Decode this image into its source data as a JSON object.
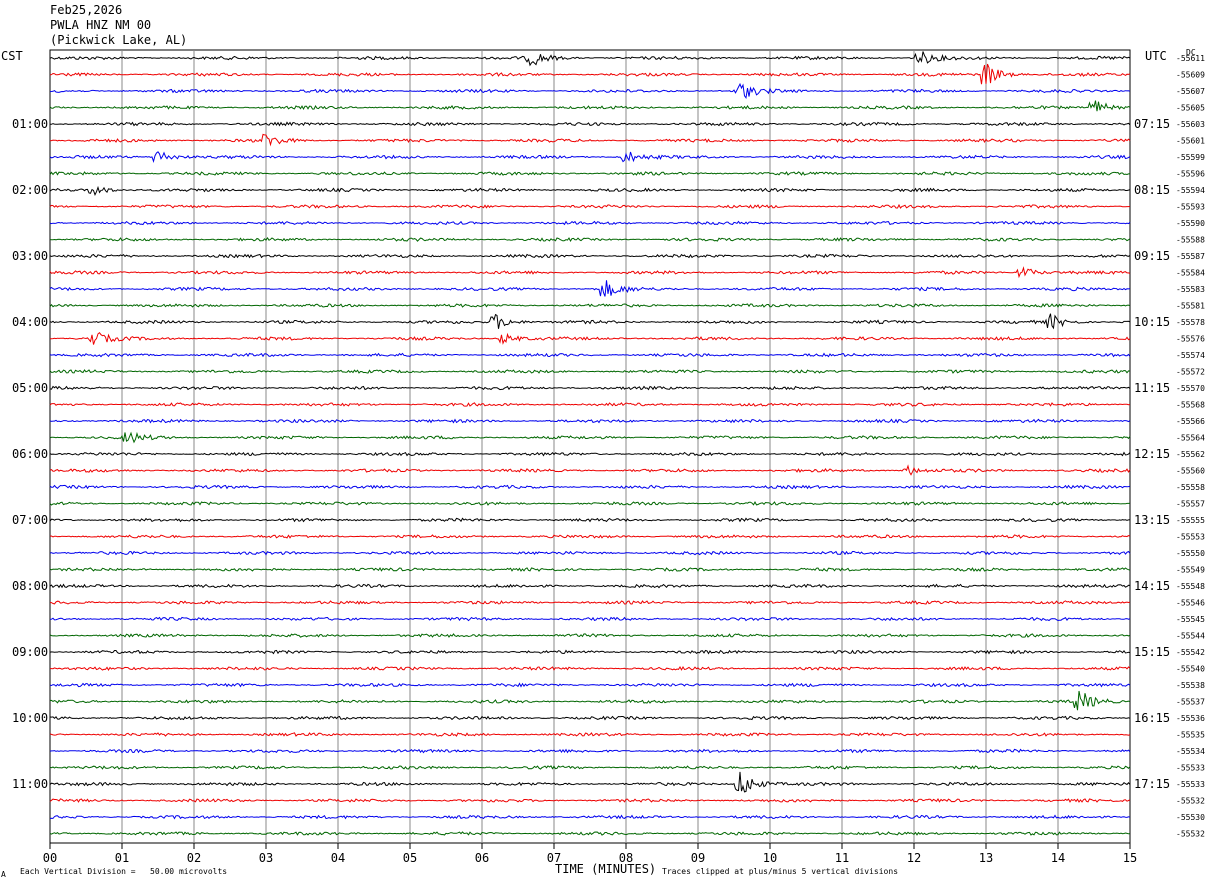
{
  "header": {
    "date": "Feb25,2026",
    "station": "PWLA HNZ NM 00",
    "location": "(Pickwick Lake, AL)"
  },
  "left_tz": "CST",
  "right_tz": "UTC",
  "dc_label": "DC",
  "footer": {
    "scale_note": "Each Vertical Division =   50.00 microvolts",
    "x_title": "TIME (MINUTES)",
    "clip_note": "Traces clipped at plus/minus 5 vertical divisions",
    "corner_mark": "A"
  },
  "chart_data": {
    "type": "line",
    "title": "PWLA HNZ NM 00 (Pickwick Lake, AL)",
    "xlabel": "TIME (MINUTES)",
    "xlim": [
      0,
      15
    ],
    "x_ticks": [
      "00",
      "01",
      "02",
      "03",
      "04",
      "05",
      "06",
      "07",
      "08",
      "09",
      "10",
      "11",
      "12",
      "13",
      "14",
      "15"
    ],
    "trace_colors": [
      "#000000",
      "#ee0000",
      "#0000ee",
      "#006600"
    ],
    "left_hour_labels": [
      "01:00",
      "02:00",
      "03:00",
      "04:00",
      "05:00",
      "06:00",
      "07:00",
      "08:00",
      "09:00",
      "10:00",
      "11:00"
    ],
    "right_hour_labels": [
      "07:15",
      "08:15",
      "09:15",
      "10:15",
      "11:15",
      "12:15",
      "13:15",
      "14:15",
      "15:15",
      "16:15",
      "17:15"
    ],
    "dc_offsets": [
      "-55611",
      "-55609",
      "-55607",
      "-55605",
      "-55603",
      "-55601",
      "-55599",
      "-55596",
      "-55594",
      "-55593",
      "-55590",
      "-55588",
      "-55587",
      "-55584",
      "-55583",
      "-55581",
      "-55578",
      "-55576",
      "-55574",
      "-55572",
      "-55570",
      "-55568",
      "-55566",
      "-55564",
      "-55562",
      "-55560",
      "-55558",
      "-55557",
      "-55555",
      "-55553",
      "-55550",
      "-55549",
      "-55548",
      "-55546",
      "-55545",
      "-55544",
      "-55542",
      "-55540",
      "-55538",
      "-55537",
      "-55536",
      "-55535",
      "-55534",
      "-55533",
      "-55533",
      "-55532",
      "-55530",
      "-55532"
    ],
    "events": [
      {
        "row": 0,
        "minute": 6.7,
        "amp": 1.2
      },
      {
        "row": 0,
        "minute": 12.1,
        "amp": 1.1
      },
      {
        "row": 1,
        "minute": 13.0,
        "amp": 2.2
      },
      {
        "row": 2,
        "minute": 9.6,
        "amp": 1.4
      },
      {
        "row": 3,
        "minute": 14.5,
        "amp": 1.5
      },
      {
        "row": 5,
        "minute": 3.0,
        "amp": 1.1
      },
      {
        "row": 6,
        "minute": 1.5,
        "amp": 1.3
      },
      {
        "row": 6,
        "minute": 8.0,
        "amp": 1.1
      },
      {
        "row": 8,
        "minute": 0.6,
        "amp": 1.0
      },
      {
        "row": 13,
        "minute": 13.5,
        "amp": 1.0
      },
      {
        "row": 14,
        "minute": 7.7,
        "amp": 1.6
      },
      {
        "row": 16,
        "minute": 6.2,
        "amp": 1.4
      },
      {
        "row": 16,
        "minute": 13.9,
        "amp": 1.2
      },
      {
        "row": 17,
        "minute": 0.6,
        "amp": 1.3
      },
      {
        "row": 17,
        "minute": 6.3,
        "amp": 0.9
      },
      {
        "row": 23,
        "minute": 1.1,
        "amp": 0.9
      },
      {
        "row": 25,
        "minute": 11.9,
        "amp": 0.9
      },
      {
        "row": 39,
        "minute": 14.3,
        "amp": 1.8
      },
      {
        "row": 44,
        "minute": 9.6,
        "amp": 2.4
      }
    ]
  }
}
